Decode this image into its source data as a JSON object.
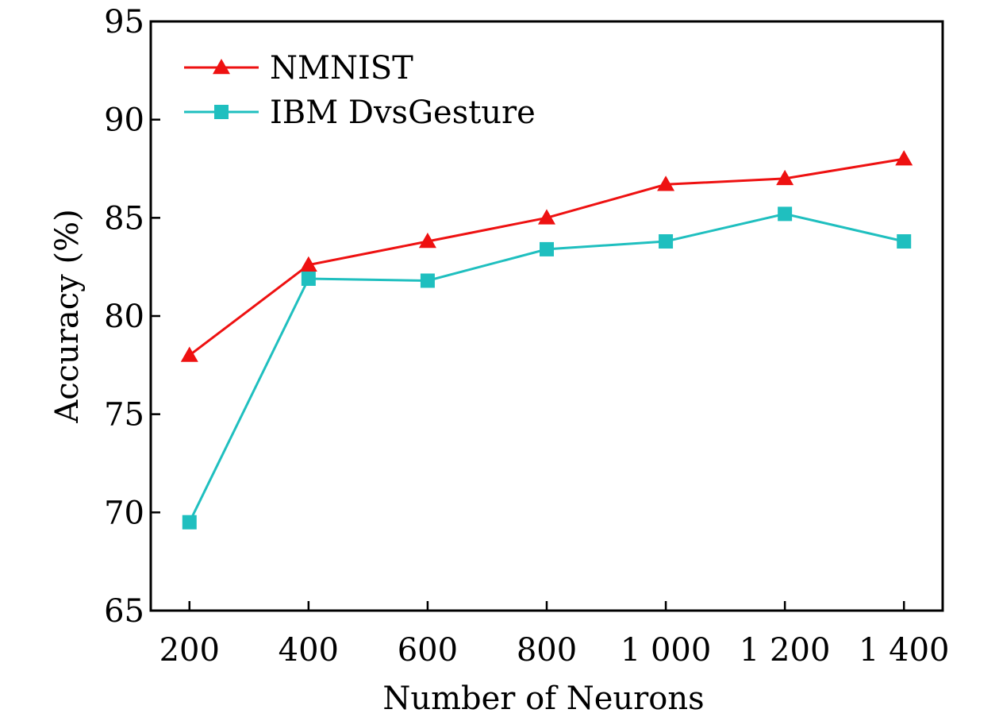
{
  "chart_data": {
    "type": "line",
    "title": "",
    "xlabel": "Number of Neurons",
    "ylabel": "Accuracy (%)",
    "x": [
      200,
      400,
      600,
      800,
      1000,
      1200,
      1400
    ],
    "x_tick_labels": [
      "200",
      "400",
      "600",
      "800",
      "1 000",
      "1 200",
      "1 400"
    ],
    "y_ticks": [
      65,
      70,
      75,
      80,
      85,
      90,
      95
    ],
    "y_tick_labels": [
      "65",
      "70",
      "75",
      "80",
      "85",
      "90",
      "95"
    ],
    "xlim": [
      135,
      1465
    ],
    "ylim": [
      65,
      95
    ],
    "grid": false,
    "legend_position": "top-left",
    "series": [
      {
        "name": "NMNIST",
        "color": "#ee1111",
        "marker": "triangle",
        "values": [
          78.0,
          82.6,
          83.8,
          85.0,
          86.7,
          87.0,
          88.0
        ]
      },
      {
        "name": "IBM DvsGesture",
        "color": "#1fbfbf",
        "marker": "square",
        "values": [
          69.5,
          81.9,
          81.8,
          83.4,
          83.8,
          85.2,
          83.8
        ]
      }
    ]
  }
}
